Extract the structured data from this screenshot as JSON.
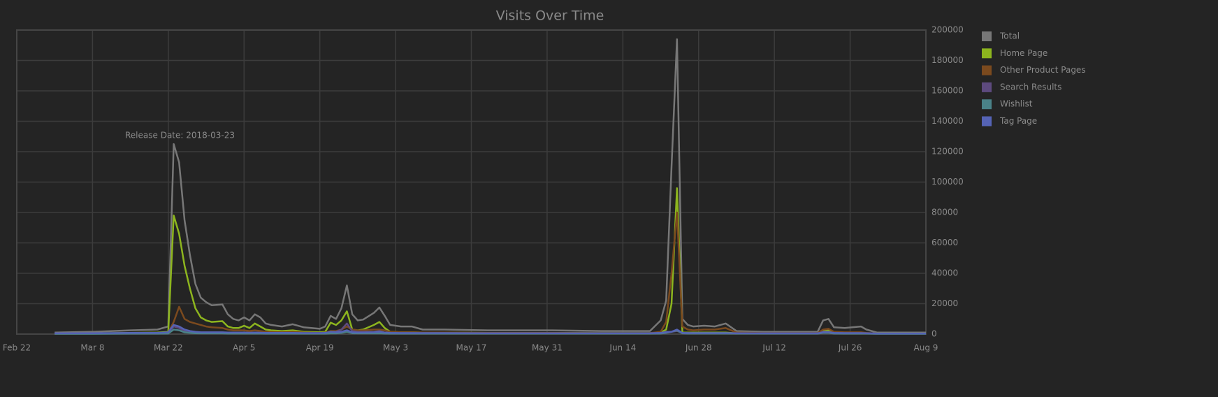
{
  "chart_data": {
    "type": "line",
    "title": "Visits Over Time",
    "annotation": "Release Date: 2018-03-23",
    "x": [
      "2018-03-01",
      "2018-03-08",
      "2018-03-15",
      "2018-03-20",
      "2018-03-22",
      "2018-03-23",
      "2018-03-24",
      "2018-03-25",
      "2018-03-26",
      "2018-03-27",
      "2018-03-28",
      "2018-03-29",
      "2018-03-30",
      "2018-04-01",
      "2018-04-02",
      "2018-04-03",
      "2018-04-04",
      "2018-04-05",
      "2018-04-06",
      "2018-04-07",
      "2018-04-08",
      "2018-04-09",
      "2018-04-10",
      "2018-04-12",
      "2018-04-14",
      "2018-04-16",
      "2018-04-19",
      "2018-04-20",
      "2018-04-21",
      "2018-04-22",
      "2018-04-23",
      "2018-04-24",
      "2018-04-25",
      "2018-04-26",
      "2018-04-27",
      "2018-04-29",
      "2018-04-30",
      "2018-05-01",
      "2018-05-02",
      "2018-05-04",
      "2018-05-06",
      "2018-05-08",
      "2018-05-12",
      "2018-05-20",
      "2018-06-01",
      "2018-06-10",
      "2018-06-19",
      "2018-06-21",
      "2018-06-22",
      "2018-06-23",
      "2018-06-24",
      "2018-06-25",
      "2018-06-26",
      "2018-06-27",
      "2018-06-29",
      "2018-07-01",
      "2018-07-03",
      "2018-07-05",
      "2018-07-10",
      "2018-07-20",
      "2018-07-21",
      "2018-07-22",
      "2018-07-23",
      "2018-07-25",
      "2018-07-28",
      "2018-07-29",
      "2018-07-31",
      "2018-08-09"
    ],
    "series": [
      {
        "name": "Total",
        "color": "#777777",
        "values": [
          1000,
          1500,
          2500,
          3000,
          5000,
          125000,
          113000,
          75000,
          52000,
          33000,
          24000,
          21000,
          19000,
          19500,
          13000,
          10000,
          9000,
          11000,
          9000,
          13000,
          11000,
          7000,
          6000,
          5000,
          6500,
          4500,
          3500,
          5000,
          12000,
          10000,
          17000,
          32000,
          13000,
          9000,
          9500,
          14000,
          17500,
          12000,
          6000,
          5000,
          5000,
          3000,
          3000,
          2500,
          2500,
          2000,
          2000,
          9000,
          22000,
          110000,
          194000,
          10000,
          6000,
          5000,
          5500,
          5000,
          7000,
          2000,
          1500,
          1500,
          9000,
          10000,
          4500,
          4000,
          5000,
          3000,
          1000,
          1000
        ]
      },
      {
        "name": "Home Page",
        "color": "#8db51e",
        "values": [
          300,
          500,
          800,
          1000,
          1500,
          78000,
          66000,
          45000,
          30000,
          17000,
          11000,
          9000,
          8000,
          8500,
          5000,
          4000,
          4000,
          5500,
          4000,
          7000,
          5000,
          3000,
          2500,
          2000,
          2500,
          1500,
          1200,
          1500,
          7500,
          6000,
          9000,
          15000,
          3000,
          2500,
          3000,
          6000,
          8000,
          4000,
          1500,
          1200,
          1200,
          1000,
          1000,
          800,
          800,
          700,
          700,
          1000,
          3000,
          20000,
          96000,
          1000,
          1000,
          1000,
          1000,
          1000,
          1000,
          500,
          500,
          500,
          2000,
          2500,
          1000,
          800,
          800,
          600,
          400,
          400
        ]
      },
      {
        "name": "Other Product Pages",
        "color": "#7b4a1e",
        "values": [
          200,
          300,
          500,
          600,
          1000,
          8000,
          18000,
          10000,
          8000,
          7000,
          6000,
          5000,
          4500,
          4000,
          3000,
          2500,
          2500,
          2500,
          2000,
          2500,
          2000,
          1500,
          1500,
          1200,
          1500,
          1000,
          800,
          1000,
          2000,
          2000,
          3000,
          5000,
          3000,
          2500,
          2500,
          3000,
          3000,
          2500,
          1500,
          1200,
          1200,
          1000,
          1000,
          800,
          800,
          700,
          700,
          1500,
          8000,
          40000,
          80000,
          5000,
          3000,
          2500,
          3000,
          3000,
          4000,
          1000,
          700,
          700,
          3000,
          3500,
          1500,
          1200,
          1200,
          800,
          300,
          300
        ]
      },
      {
        "name": "Search Results",
        "color": "#5d4a7e",
        "values": [
          300,
          400,
          500,
          500,
          600,
          5000,
          4000,
          2000,
          1500,
          1200,
          1000,
          1000,
          1000,
          1000,
          900,
          900,
          900,
          900,
          800,
          900,
          800,
          700,
          700,
          600,
          600,
          600,
          500,
          600,
          1200,
          1500,
          3000,
          7000,
          2000,
          1500,
          1500,
          1500,
          2000,
          1000,
          800,
          700,
          700,
          600,
          600,
          500,
          500,
          500,
          500,
          800,
          1500,
          1500,
          2000,
          800,
          700,
          600,
          600,
          600,
          600,
          500,
          400,
          400,
          1500,
          1500,
          800,
          600,
          600,
          500,
          300,
          300
        ]
      },
      {
        "name": "Wishlist",
        "color": "#4a8288",
        "values": [
          200,
          200,
          300,
          300,
          400,
          3000,
          2500,
          1200,
          800,
          600,
          500,
          500,
          500,
          500,
          400,
          400,
          400,
          400,
          400,
          400,
          400,
          300,
          300,
          300,
          300,
          300,
          300,
          300,
          500,
          500,
          800,
          1500,
          600,
          500,
          500,
          500,
          600,
          400,
          300,
          300,
          300,
          300,
          300,
          300,
          300,
          300,
          300,
          400,
          800,
          1500,
          2500,
          500,
          400,
          400,
          400,
          400,
          400,
          300,
          300,
          300,
          800,
          800,
          400,
          300,
          300,
          300,
          200,
          200
        ]
      },
      {
        "name": "Tag Page",
        "color": "#5563b5",
        "values": [
          500,
          600,
          800,
          800,
          1200,
          6000,
          5000,
          3000,
          2000,
          1500,
          1200,
          1200,
          1200,
          1200,
          1000,
          1000,
          1000,
          1000,
          900,
          1000,
          900,
          800,
          800,
          800,
          800,
          700,
          700,
          800,
          1500,
          1200,
          1500,
          2500,
          1200,
          1000,
          1000,
          1200,
          1500,
          1000,
          800,
          700,
          700,
          700,
          700,
          600,
          600,
          600,
          600,
          800,
          1200,
          1500,
          3000,
          800,
          700,
          700,
          700,
          700,
          700,
          600,
          500,
          500,
          1200,
          1200,
          800,
          700,
          700,
          600,
          400,
          400
        ]
      }
    ],
    "xlim": [
      "2018-02-22",
      "2018-08-09"
    ],
    "xticks": [
      {
        "value": "2018-02-22",
        "label": "Feb 22"
      },
      {
        "value": "2018-03-08",
        "label": "Mar 8"
      },
      {
        "value": "2018-03-22",
        "label": "Mar 22"
      },
      {
        "value": "2018-04-05",
        "label": "Apr 5"
      },
      {
        "value": "2018-04-19",
        "label": "Apr 19"
      },
      {
        "value": "2018-05-03",
        "label": "May 3"
      },
      {
        "value": "2018-05-17",
        "label": "May 17"
      },
      {
        "value": "2018-05-31",
        "label": "May 31"
      },
      {
        "value": "2018-06-14",
        "label": "Jun 14"
      },
      {
        "value": "2018-06-28",
        "label": "Jun 28"
      },
      {
        "value": "2018-07-12",
        "label": "Jul 12"
      },
      {
        "value": "2018-07-26",
        "label": "Jul 26"
      },
      {
        "value": "2018-08-09",
        "label": "Aug 9"
      }
    ],
    "ylim": [
      0,
      200000
    ],
    "yticks": [
      0,
      20000,
      40000,
      60000,
      80000,
      100000,
      120000,
      140000,
      160000,
      180000,
      200000
    ],
    "grid": true,
    "legend": "right"
  }
}
